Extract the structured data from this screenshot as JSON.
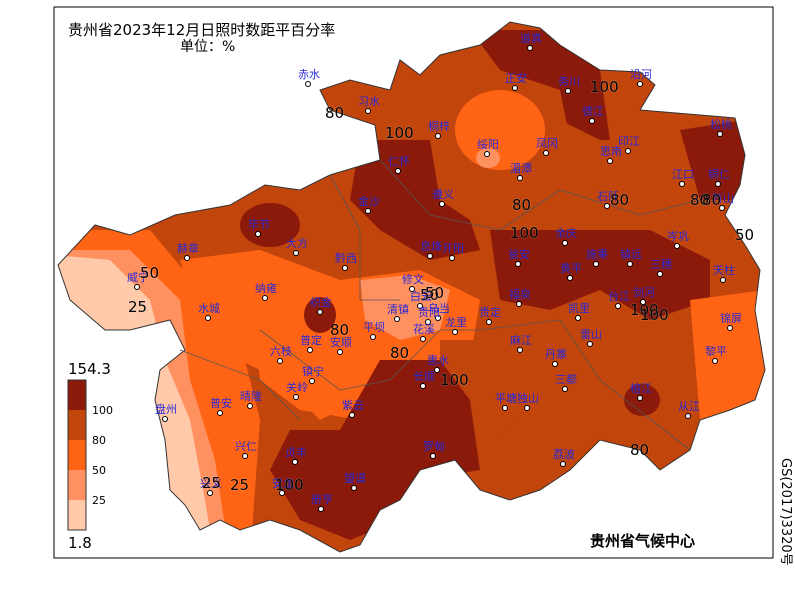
{
  "header": {
    "title": "贵州省2023年12月日照时数距平百分率",
    "unit": "单位：%"
  },
  "legend": {
    "max": 154.3,
    "min": 1.8,
    "breaks": [
      100,
      80,
      50,
      25
    ]
  },
  "stations": [
    "赤水",
    "习水",
    "道真",
    "务川",
    "沿河",
    "正安",
    "桐梓",
    "德江",
    "印江",
    "绥阳",
    "凤冈",
    "思南",
    "松桃",
    "湄潭",
    "仁怀",
    "江口",
    "铜仁",
    "石阡",
    "金沙",
    "遵义",
    "万山",
    "毕节",
    "大方",
    "黔西",
    "息烽",
    "开阳",
    "余庆",
    "施秉",
    "镇远",
    "岑巩",
    "赫章",
    "瓮安",
    "黄平",
    "三穗",
    "天柱",
    "威宁",
    "修文",
    "白云",
    "乌当",
    "福泉",
    "台江",
    "剑河",
    "纳雍",
    "织金",
    "清镇",
    "贵阳",
    "平坝",
    "花溪",
    "龙里",
    "贵定",
    "凯里",
    "麻江",
    "雷山",
    "锦屏",
    "丹寨",
    "水城",
    "普定",
    "安顺",
    "六枝",
    "镇宁",
    "长顺",
    "惠水",
    "关岭",
    "三都",
    "榕江",
    "黎平",
    "从江",
    "盘州",
    "晴隆",
    "普安",
    "紫云",
    "平塘",
    "独山",
    "兴仁",
    "贞丰",
    "罗甸",
    "荔波",
    "兴义",
    "安龙",
    "望谟",
    "册亨"
  ],
  "contours": [
    80,
    100,
    100,
    80,
    100,
    80,
    100,
    80,
    50,
    50,
    25,
    25,
    50,
    80,
    100,
    100,
    80,
    50,
    25,
    80,
    100,
    80
  ],
  "credit": "贵州省气候中心",
  "map_number": "GS(2017)3320号"
}
